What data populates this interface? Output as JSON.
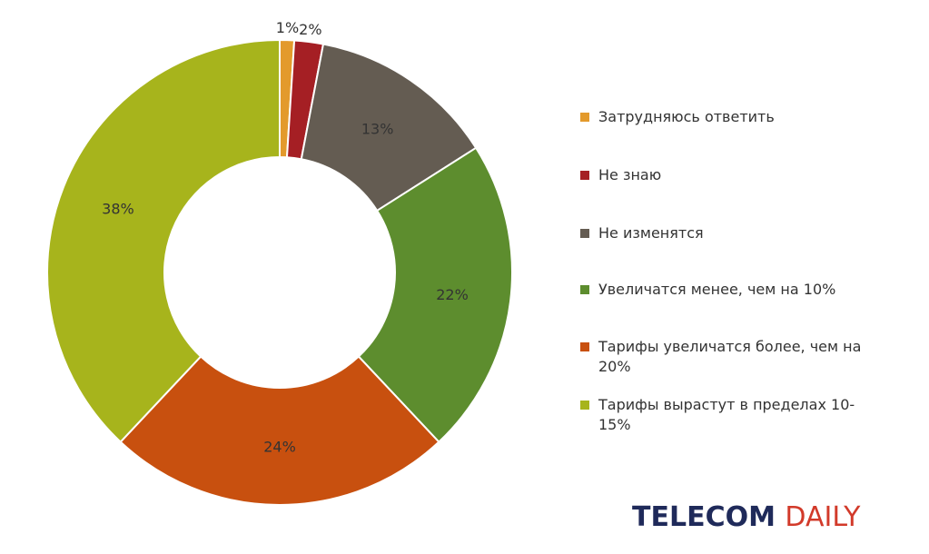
{
  "chart_data": {
    "type": "pie",
    "donut": true,
    "categories": [
      "Затрудняюсь ответить",
      "Не знаю",
      "Не изменятся",
      "Увеличатся менее, чем на 10%",
      "Тарифы увеличатся более, чем на 20%",
      "Тарифы вырастут в пределах 10-15%"
    ],
    "values": [
      1,
      2,
      13,
      22,
      24,
      38
    ],
    "value_labels": [
      "1%",
      "2%",
      "13%",
      "22%",
      "24%",
      "38%"
    ],
    "colors": [
      "#e39a2c",
      "#a51f24",
      "#645c52",
      "#5d8d2e",
      "#c8500f",
      "#a7b41c"
    ],
    "legend_position": "right",
    "title": "",
    "xlabel": "",
    "ylabel": ""
  },
  "legend": {
    "items": [
      {
        "label": "Затрудняюсь ответить",
        "color": "#e39a2c"
      },
      {
        "label": "Не знаю",
        "color": "#a51f24"
      },
      {
        "label": "Не изменятся",
        "color": "#645c52"
      },
      {
        "label": "Увеличатся менее, чем на 10%",
        "color": "#5d8d2e"
      },
      {
        "label": "Тарифы увеличатся более, чем на 20%",
        "color": "#c8500f"
      },
      {
        "label": "Тарифы вырастут в пределах 10-15%",
        "color": "#a7b41c"
      }
    ]
  },
  "brand": {
    "part1": "TELECOM ",
    "part2": "DAILY",
    "color1": "#1f2a5a",
    "color2": "#d23a2a"
  }
}
